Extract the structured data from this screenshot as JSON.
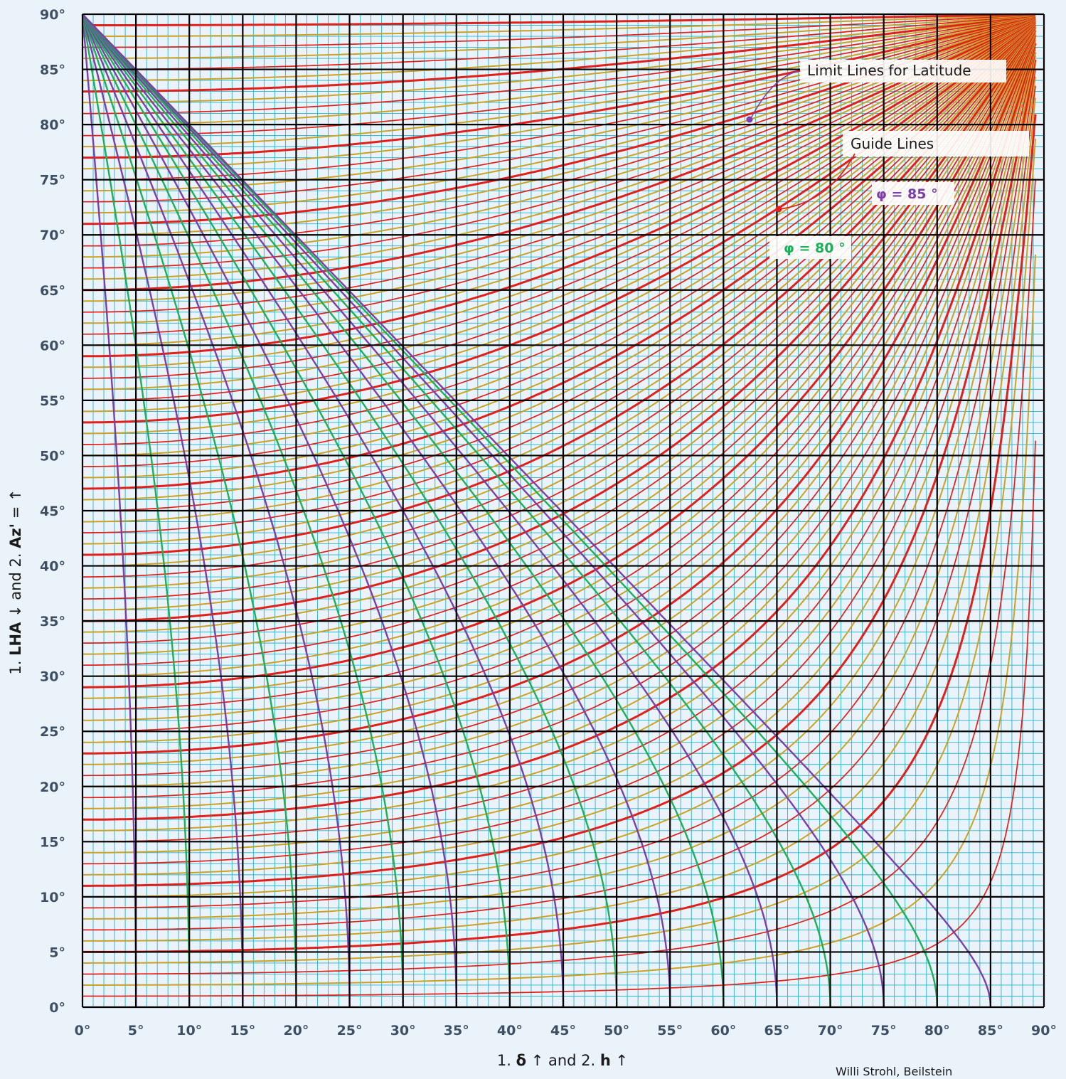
{
  "chart_data": {
    "type": "line",
    "xlabel": {
      "p1": "1. ",
      "sym1": "δ",
      "p2": " ↑  and 2. ",
      "sym2": "h",
      "p3": " ↑"
    },
    "ylabel": {
      "p1": "1. ",
      "sym1": "LHA",
      "p2": " ↓  and  2. ",
      "sym2": "Az'",
      "p3": "  = ↑"
    },
    "xlim": [
      0,
      90
    ],
    "ylim": [
      0,
      90
    ],
    "x_ticks": [
      "0°",
      "5°",
      "10°",
      "15°",
      "20°",
      "25°",
      "30°",
      "35°",
      "40°",
      "45°",
      "50°",
      "55°",
      "60°",
      "65°",
      "70°",
      "75°",
      "80°",
      "85°",
      "90°"
    ],
    "y_ticks": [
      "0°",
      "5°",
      "10°",
      "15°",
      "20°",
      "25°",
      "30°",
      "35°",
      "40°",
      "45°",
      "50°",
      "55°",
      "60°",
      "65°",
      "70°",
      "75°",
      "80°",
      "85°",
      "90°"
    ],
    "grid": {
      "minor_step": 1,
      "major_step": 5,
      "minor_color": "#2bb3c9",
      "major_color": "#000000"
    },
    "series": [
      {
        "family": "latitude limit lines",
        "colors": [
          "#7a3fa8",
          "#1fae5a"
        ],
        "values_deg": [
          5,
          10,
          15,
          20,
          25,
          30,
          35,
          40,
          45,
          50,
          55,
          60,
          65,
          70,
          75,
          80,
          85
        ],
        "curve": "x = asin(sin(phi)·cos(y)) — latitude φ"
      },
      {
        "family": "guide lines",
        "colors": [
          "#c9a227",
          "#e0201a"
        ],
        "values_deg": [
          1,
          2,
          3,
          4,
          5,
          6,
          7,
          8,
          9,
          10,
          11,
          12,
          13,
          14,
          15,
          16,
          17,
          18,
          19,
          20,
          21,
          22,
          23,
          24,
          25,
          26,
          27,
          28,
          29,
          30,
          31,
          32,
          33,
          34,
          35,
          36,
          37,
          38,
          39,
          40,
          41,
          42,
          43,
          44,
          45,
          46,
          47,
          48,
          49,
          50,
          51,
          52,
          53,
          54,
          55,
          56,
          57,
          58,
          59,
          60,
          61,
          62,
          63,
          64,
          65,
          66,
          67,
          68,
          69,
          70,
          71,
          72,
          73,
          74,
          75,
          76,
          77,
          78,
          79,
          80,
          81,
          82,
          83,
          84,
          85,
          86,
          87,
          88,
          89
        ],
        "curve": "y = atan(tan(a)/cos(x))"
      }
    ],
    "annotations": {
      "limit_lines": "Limit Lines for Latitude",
      "guide_lines": "Guide Lines",
      "phi85": "φ = 85 °",
      "phi80": "φ = 80 °"
    },
    "colors": {
      "limit_purple": "#7a3fa8",
      "limit_green": "#1fae5a",
      "guide_gold": "#c9a227",
      "guide_red": "#e0201a"
    }
  },
  "credit": "Willi Strohl, Beilstein"
}
